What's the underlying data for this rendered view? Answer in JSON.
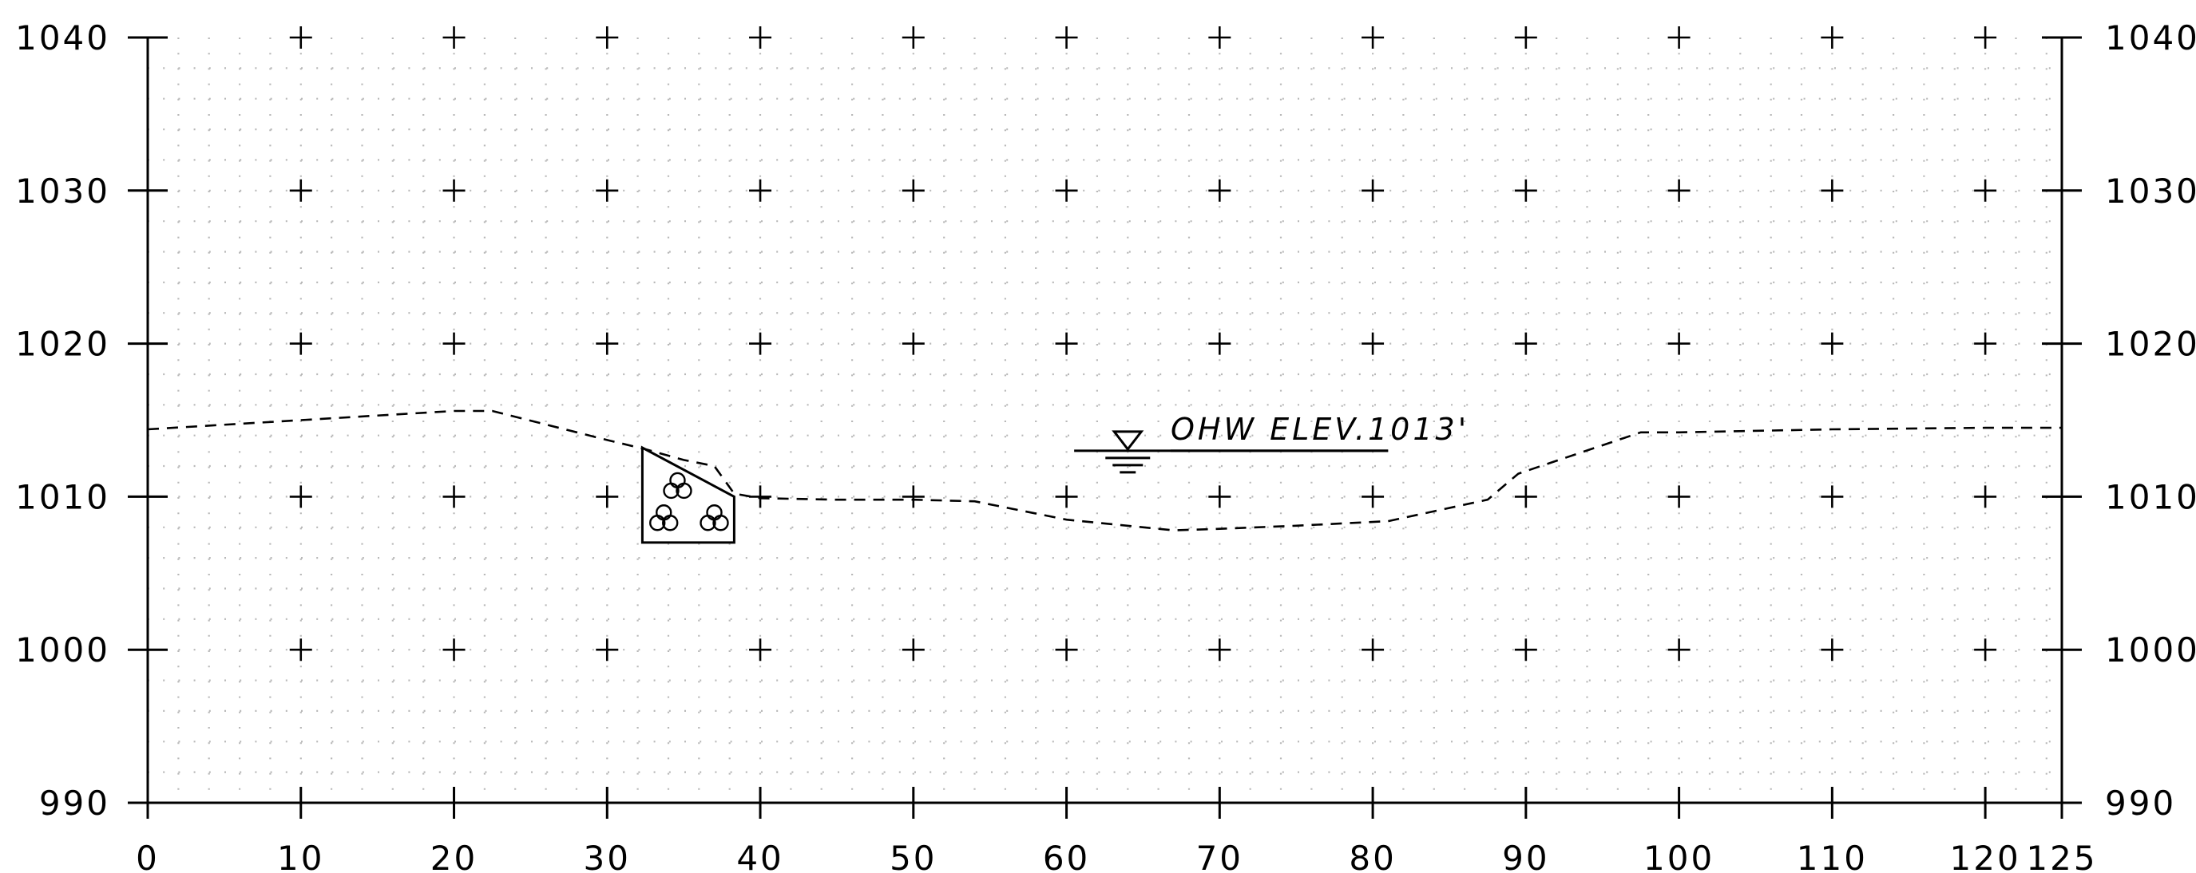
{
  "chart_data": {
    "type": "line",
    "title": "",
    "xlabel": "",
    "ylabel": "",
    "xlim": [
      0,
      125
    ],
    "ylim": [
      990,
      1040
    ],
    "x_ticks": [
      0,
      10,
      20,
      30,
      40,
      50,
      60,
      70,
      80,
      90,
      100,
      110,
      120,
      125
    ],
    "x_tick_labels": [
      "0",
      "10",
      "20",
      "30",
      "40",
      "50",
      "60",
      "70",
      "80",
      "90",
      "100",
      "110",
      "120",
      "125"
    ],
    "y_ticks": [
      990,
      1000,
      1010,
      1020,
      1030,
      1040
    ],
    "y_tick_labels_left": [
      "990",
      "1000",
      "1010",
      "1020",
      "1030",
      "1040"
    ],
    "y_tick_labels_right": [
      "990",
      "1000",
      "1010",
      "1020",
      "1030",
      "1040"
    ],
    "grid": "dotted, with + markers at 10 x 10 intersections",
    "series": [
      {
        "style": "dashed",
        "color": "#000000",
        "points": [
          [
            0,
            1014.4
          ],
          [
            10,
            1015.0
          ],
          [
            20,
            1015.6
          ],
          [
            22.5,
            1015.6
          ],
          [
            30,
            1013.7
          ],
          [
            32.5,
            1013.1
          ],
          [
            35,
            1012.4
          ],
          [
            37,
            1012.0
          ],
          [
            38.3,
            1010.2
          ],
          [
            40,
            1009.9
          ],
          [
            45,
            1009.8
          ],
          [
            50,
            1009.8
          ],
          [
            54,
            1009.7
          ],
          [
            60,
            1008.5
          ],
          [
            67,
            1007.8
          ],
          [
            70,
            1007.9
          ],
          [
            75,
            1008.1
          ],
          [
            81,
            1008.4
          ],
          [
            87.5,
            1009.8
          ],
          [
            89.5,
            1011.5
          ],
          [
            97.5,
            1014.2
          ],
          [
            100,
            1014.2
          ],
          [
            110,
            1014.4
          ],
          [
            120,
            1014.5
          ],
          [
            125,
            1014.5
          ]
        ]
      }
    ],
    "annotations": [
      {
        "kind": "water-surface",
        "text": "OHW ELEV.1013'",
        "x_range": [
          60.5,
          81
        ],
        "y": 1013,
        "symbol": "triangle-down"
      },
      {
        "kind": "riprap-block",
        "polygon": [
          [
            32.3,
            1013.2
          ],
          [
            32.3,
            1007.0
          ],
          [
            38.3,
            1007.0
          ],
          [
            38.3,
            1010.0
          ]
        ],
        "rock_clusters": [
          [
            34.6,
            1010.7
          ],
          [
            33.7,
            1008.6
          ],
          [
            37.0,
            1008.6
          ]
        ]
      }
    ]
  }
}
